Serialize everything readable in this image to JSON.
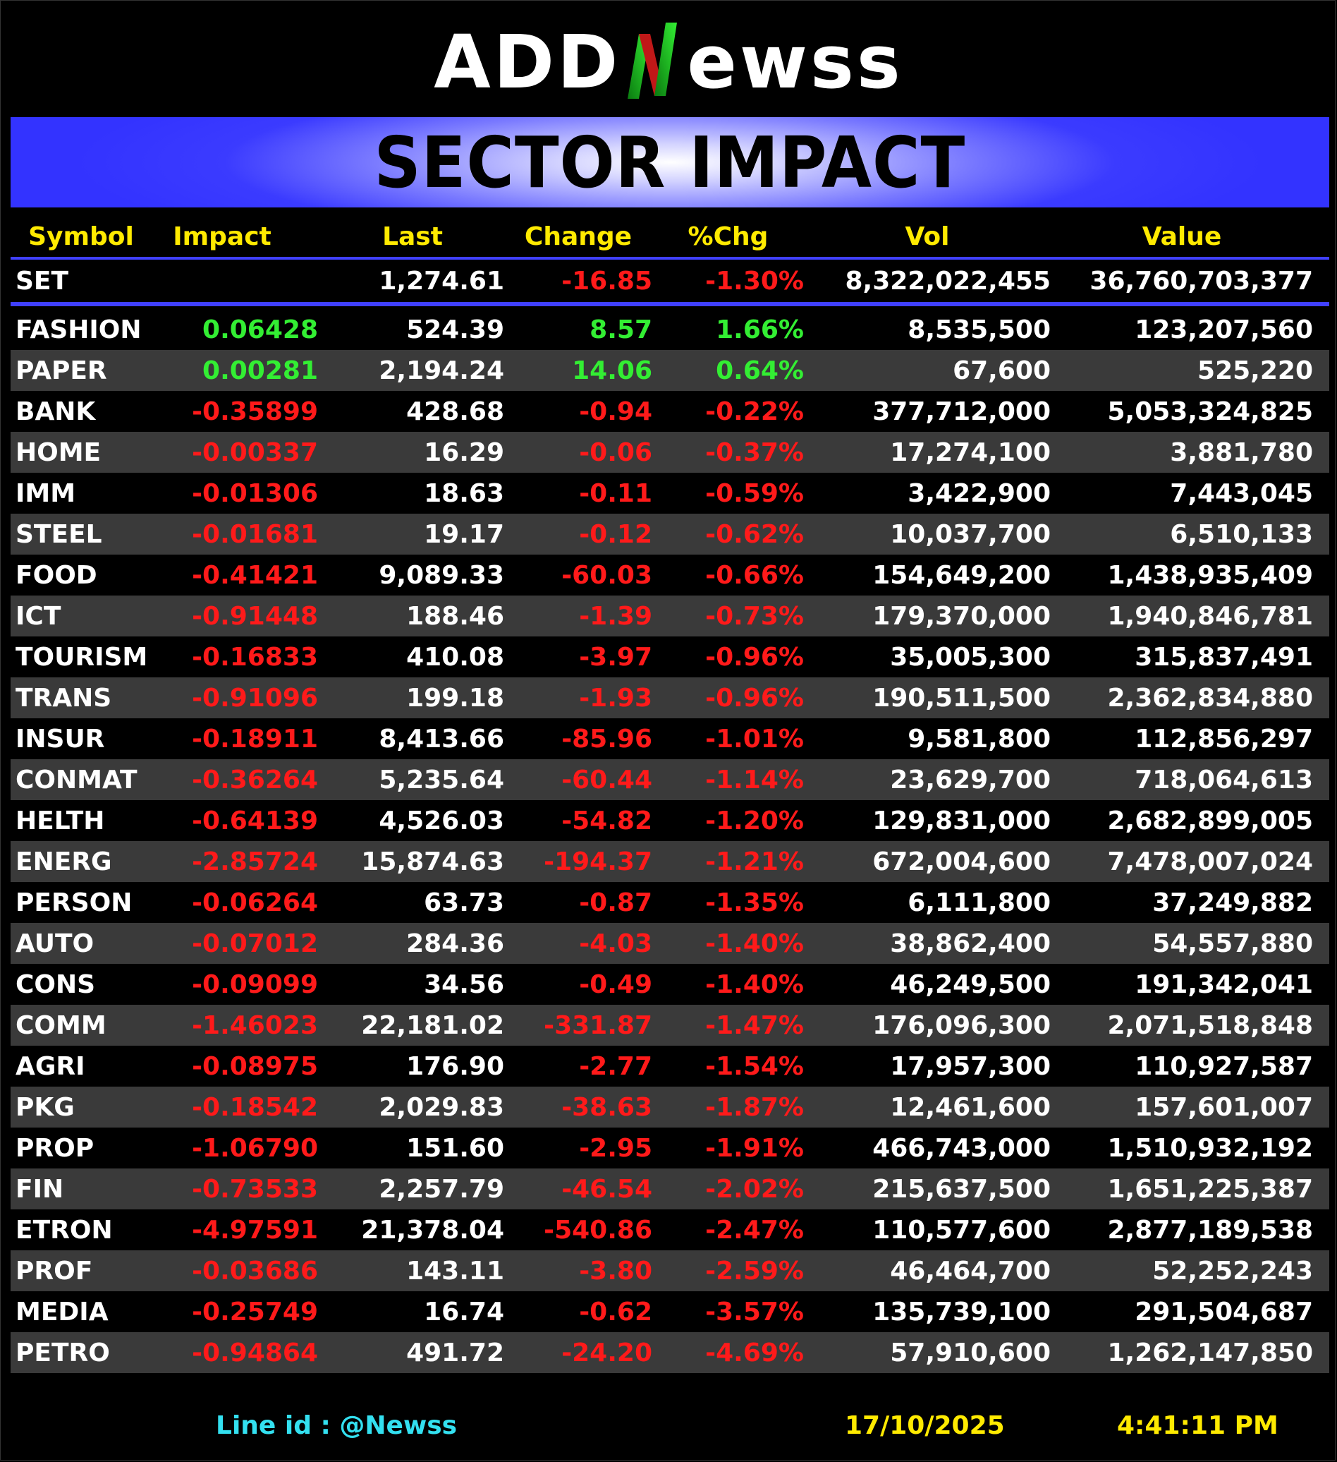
{
  "logo": {
    "prefix": "ADD",
    "suffix": "ewss"
  },
  "banner": {
    "title": "SECTOR IMPACT"
  },
  "columns": {
    "symbol": "Symbol",
    "impact": "Impact",
    "last": "Last",
    "change": "Change",
    "pct": "%Chg",
    "vol": "Vol",
    "value": "Value"
  },
  "index_row": {
    "symbol": "SET",
    "impact": "",
    "last": "1,274.61",
    "change": "-16.85",
    "pct": "-1.30%",
    "vol": "8,322,022,455",
    "value": "36,760,703,377"
  },
  "colors": {
    "positive": "#33ee33",
    "negative": "#ff1a1a",
    "header": "#ffea00",
    "accent": "#3333ff"
  },
  "sectors": [
    {
      "symbol": "FASHION",
      "impact": "0.06428",
      "last": "524.39",
      "change": "8.57",
      "pct": "1.66%",
      "vol": "8,535,500",
      "value": "123,207,560",
      "dir": "pos"
    },
    {
      "symbol": "PAPER",
      "impact": "0.00281",
      "last": "2,194.24",
      "change": "14.06",
      "pct": "0.64%",
      "vol": "67,600",
      "value": "525,220",
      "dir": "pos"
    },
    {
      "symbol": "BANK",
      "impact": "-0.35899",
      "last": "428.68",
      "change": "-0.94",
      "pct": "-0.22%",
      "vol": "377,712,000",
      "value": "5,053,324,825",
      "dir": "neg"
    },
    {
      "symbol": "HOME",
      "impact": "-0.00337",
      "last": "16.29",
      "change": "-0.06",
      "pct": "-0.37%",
      "vol": "17,274,100",
      "value": "3,881,780",
      "dir": "neg"
    },
    {
      "symbol": "IMM",
      "impact": "-0.01306",
      "last": "18.63",
      "change": "-0.11",
      "pct": "-0.59%",
      "vol": "3,422,900",
      "value": "7,443,045",
      "dir": "neg"
    },
    {
      "symbol": "STEEL",
      "impact": "-0.01681",
      "last": "19.17",
      "change": "-0.12",
      "pct": "-0.62%",
      "vol": "10,037,700",
      "value": "6,510,133",
      "dir": "neg"
    },
    {
      "symbol": "FOOD",
      "impact": "-0.41421",
      "last": "9,089.33",
      "change": "-60.03",
      "pct": "-0.66%",
      "vol": "154,649,200",
      "value": "1,438,935,409",
      "dir": "neg"
    },
    {
      "symbol": "ICT",
      "impact": "-0.91448",
      "last": "188.46",
      "change": "-1.39",
      "pct": "-0.73%",
      "vol": "179,370,000",
      "value": "1,940,846,781",
      "dir": "neg"
    },
    {
      "symbol": "TOURISM",
      "impact": "-0.16833",
      "last": "410.08",
      "change": "-3.97",
      "pct": "-0.96%",
      "vol": "35,005,300",
      "value": "315,837,491",
      "dir": "neg"
    },
    {
      "symbol": "TRANS",
      "impact": "-0.91096",
      "last": "199.18",
      "change": "-1.93",
      "pct": "-0.96%",
      "vol": "190,511,500",
      "value": "2,362,834,880",
      "dir": "neg"
    },
    {
      "symbol": "INSUR",
      "impact": "-0.18911",
      "last": "8,413.66",
      "change": "-85.96",
      "pct": "-1.01%",
      "vol": "9,581,800",
      "value": "112,856,297",
      "dir": "neg"
    },
    {
      "symbol": "CONMAT",
      "impact": "-0.36264",
      "last": "5,235.64",
      "change": "-60.44",
      "pct": "-1.14%",
      "vol": "23,629,700",
      "value": "718,064,613",
      "dir": "neg"
    },
    {
      "symbol": "HELTH",
      "impact": "-0.64139",
      "last": "4,526.03",
      "change": "-54.82",
      "pct": "-1.20%",
      "vol": "129,831,000",
      "value": "2,682,899,005",
      "dir": "neg"
    },
    {
      "symbol": "ENERG",
      "impact": "-2.85724",
      "last": "15,874.63",
      "change": "-194.37",
      "pct": "-1.21%",
      "vol": "672,004,600",
      "value": "7,478,007,024",
      "dir": "neg"
    },
    {
      "symbol": "PERSON",
      "impact": "-0.06264",
      "last": "63.73",
      "change": "-0.87",
      "pct": "-1.35%",
      "vol": "6,111,800",
      "value": "37,249,882",
      "dir": "neg"
    },
    {
      "symbol": "AUTO",
      "impact": "-0.07012",
      "last": "284.36",
      "change": "-4.03",
      "pct": "-1.40%",
      "vol": "38,862,400",
      "value": "54,557,880",
      "dir": "neg"
    },
    {
      "symbol": "CONS",
      "impact": "-0.09099",
      "last": "34.56",
      "change": "-0.49",
      "pct": "-1.40%",
      "vol": "46,249,500",
      "value": "191,342,041",
      "dir": "neg"
    },
    {
      "symbol": "COMM",
      "impact": "-1.46023",
      "last": "22,181.02",
      "change": "-331.87",
      "pct": "-1.47%",
      "vol": "176,096,300",
      "value": "2,071,518,848",
      "dir": "neg"
    },
    {
      "symbol": "AGRI",
      "impact": "-0.08975",
      "last": "176.90",
      "change": "-2.77",
      "pct": "-1.54%",
      "vol": "17,957,300",
      "value": "110,927,587",
      "dir": "neg"
    },
    {
      "symbol": "PKG",
      "impact": "-0.18542",
      "last": "2,029.83",
      "change": "-38.63",
      "pct": "-1.87%",
      "vol": "12,461,600",
      "value": "157,601,007",
      "dir": "neg"
    },
    {
      "symbol": "PROP",
      "impact": "-1.06790",
      "last": "151.60",
      "change": "-2.95",
      "pct": "-1.91%",
      "vol": "466,743,000",
      "value": "1,510,932,192",
      "dir": "neg"
    },
    {
      "symbol": "FIN",
      "impact": "-0.73533",
      "last": "2,257.79",
      "change": "-46.54",
      "pct": "-2.02%",
      "vol": "215,637,500",
      "value": "1,651,225,387",
      "dir": "neg"
    },
    {
      "symbol": "ETRON",
      "impact": "-4.97591",
      "last": "21,378.04",
      "change": "-540.86",
      "pct": "-2.47%",
      "vol": "110,577,600",
      "value": "2,877,189,538",
      "dir": "neg"
    },
    {
      "symbol": "PROF",
      "impact": "-0.03686",
      "last": "143.11",
      "change": "-3.80",
      "pct": "-2.59%",
      "vol": "46,464,700",
      "value": "52,252,243",
      "dir": "neg"
    },
    {
      "symbol": "MEDIA",
      "impact": "-0.25749",
      "last": "16.74",
      "change": "-0.62",
      "pct": "-3.57%",
      "vol": "135,739,100",
      "value": "291,504,687",
      "dir": "neg"
    },
    {
      "symbol": "PETRO",
      "impact": "-0.94864",
      "last": "491.72",
      "change": "-24.20",
      "pct": "-4.69%",
      "vol": "57,910,600",
      "value": "1,262,147,850",
      "dir": "neg"
    }
  ],
  "footer": {
    "line_id": "Line id  : @Newss",
    "date": "17/10/2025",
    "time": "4:41:11 PM"
  }
}
